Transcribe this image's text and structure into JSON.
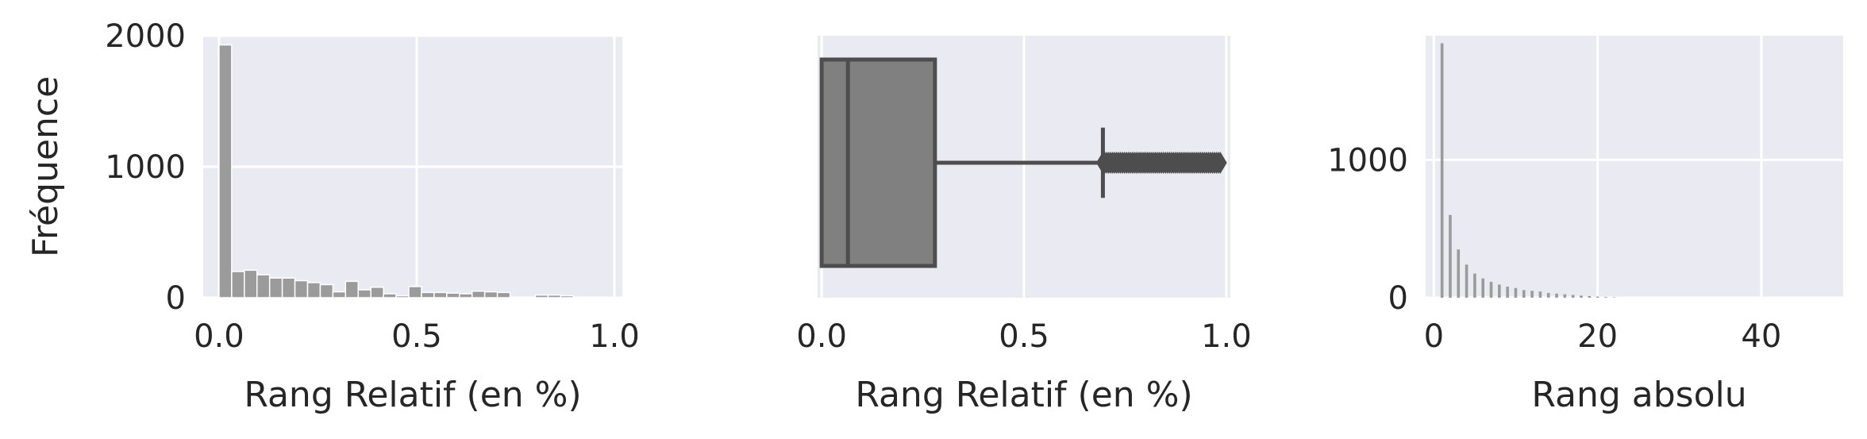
{
  "chart_data": [
    {
      "type": "bar",
      "subtype": "histogram",
      "xlabel": "Rang Relatif (en %)",
      "ylabel": "Fréquence",
      "xlim": [
        -0.04,
        1.02
      ],
      "ylim": [
        0,
        2000
      ],
      "xticks": [
        0.0,
        0.5,
        1.0
      ],
      "xtick_labels": [
        "0.0",
        "0.5",
        "1.0"
      ],
      "yticks": [
        0,
        1000,
        2000
      ],
      "ytick_labels": [
        "0",
        "1000",
        "2000"
      ],
      "grid": true,
      "bar_color": "#9b9b9b",
      "bin_width": 0.032,
      "bins": [
        {
          "x": 0.0,
          "count": 1930
        },
        {
          "x": 0.032,
          "count": 200
        },
        {
          "x": 0.064,
          "count": 210
        },
        {
          "x": 0.096,
          "count": 175
        },
        {
          "x": 0.128,
          "count": 150
        },
        {
          "x": 0.16,
          "count": 150
        },
        {
          "x": 0.192,
          "count": 130
        },
        {
          "x": 0.224,
          "count": 115
        },
        {
          "x": 0.256,
          "count": 100
        },
        {
          "x": 0.288,
          "count": 45
        },
        {
          "x": 0.32,
          "count": 125
        },
        {
          "x": 0.352,
          "count": 60
        },
        {
          "x": 0.384,
          "count": 80
        },
        {
          "x": 0.416,
          "count": 30
        },
        {
          "x": 0.448,
          "count": 15
        },
        {
          "x": 0.48,
          "count": 85
        },
        {
          "x": 0.512,
          "count": 40
        },
        {
          "x": 0.544,
          "count": 40
        },
        {
          "x": 0.576,
          "count": 35
        },
        {
          "x": 0.608,
          "count": 30
        },
        {
          "x": 0.64,
          "count": 50
        },
        {
          "x": 0.672,
          "count": 45
        },
        {
          "x": 0.704,
          "count": 40
        },
        {
          "x": 0.736,
          "count": 5
        },
        {
          "x": 0.768,
          "count": 0
        },
        {
          "x": 0.8,
          "count": 20
        },
        {
          "x": 0.832,
          "count": 20
        },
        {
          "x": 0.864,
          "count": 15
        },
        {
          "x": 0.896,
          "count": 5
        },
        {
          "x": 0.928,
          "count": 5
        }
      ]
    },
    {
      "type": "box",
      "orientation": "horizontal",
      "xlabel": "Rang Relatif (en %)",
      "xlim": [
        -0.01,
        1.01
      ],
      "xticks": [
        0.0,
        0.5,
        1.0
      ],
      "xtick_labels": [
        "0.0",
        "0.5",
        "1.0"
      ],
      "grid": true,
      "box_color": "#808080",
      "line_color": "#4d4d4d",
      "stats": {
        "whisker_low": 0.0,
        "q1": 0.0,
        "median": 0.065,
        "q3": 0.28,
        "whisker_high": 0.695
      },
      "outliers_range": [
        0.695,
        0.985
      ]
    },
    {
      "type": "bar",
      "subtype": "histogram",
      "xlabel": "Rang absolu",
      "xlim": [
        -1,
        50
      ],
      "ylim": [
        0,
        1900
      ],
      "xticks": [
        0,
        20,
        40
      ],
      "xtick_labels": [
        "0",
        "20",
        "40"
      ],
      "yticks": [
        0,
        1000
      ],
      "ytick_labels": [
        "0",
        "1000"
      ],
      "grid": true,
      "bar_color": "#9b9b9b",
      "bars": [
        {
          "x": 1,
          "count": 1845
        },
        {
          "x": 2,
          "count": 600
        },
        {
          "x": 3,
          "count": 350
        },
        {
          "x": 4,
          "count": 240
        },
        {
          "x": 5,
          "count": 175
        },
        {
          "x": 6,
          "count": 140
        },
        {
          "x": 7,
          "count": 115
        },
        {
          "x": 8,
          "count": 95
        },
        {
          "x": 9,
          "count": 80
        },
        {
          "x": 10,
          "count": 70
        },
        {
          "x": 11,
          "count": 55
        },
        {
          "x": 12,
          "count": 50
        },
        {
          "x": 13,
          "count": 45
        },
        {
          "x": 14,
          "count": 35
        },
        {
          "x": 15,
          "count": 30
        },
        {
          "x": 16,
          "count": 25
        },
        {
          "x": 17,
          "count": 20
        },
        {
          "x": 18,
          "count": 15
        },
        {
          "x": 19,
          "count": 12
        },
        {
          "x": 20,
          "count": 8
        },
        {
          "x": 21,
          "count": 5
        },
        {
          "x": 22,
          "count": 3
        }
      ]
    }
  ]
}
